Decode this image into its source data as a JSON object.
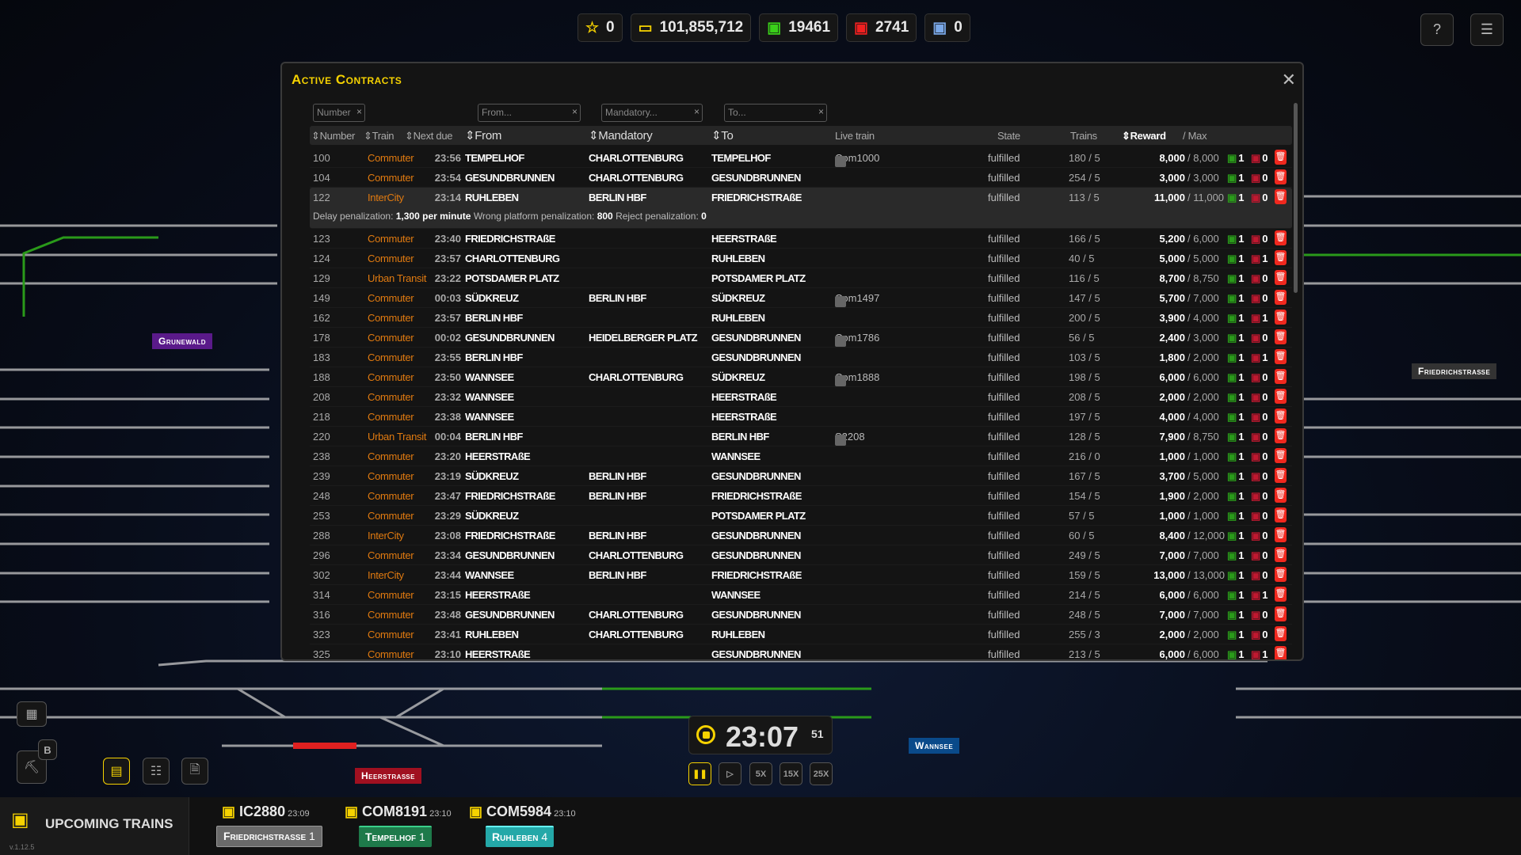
{
  "stats": {
    "stars": "0",
    "money": "101,855,712",
    "trains_ok": "19461",
    "trains_bad": "2741",
    "trains_other": "0"
  },
  "colors": {
    "accent": "#f6d200",
    "train_type": "#e07a10",
    "ok": "#2a9a1a",
    "bad": "#c01830",
    "delete": "#f0281e"
  },
  "map_labels": {
    "grunewald": "Grunewald",
    "friedrichstrasse": "Friedrichstraße",
    "heerstrasse": "Heerstraße",
    "wannsee": "Wannsee"
  },
  "modal": {
    "title": "Active Contracts",
    "filters": {
      "number": "Number",
      "from": "From...",
      "mandatory": "Mandatory...",
      "to": "To..."
    },
    "columns": {
      "number": "Number",
      "train": "Train",
      "next_due": "Next due",
      "from": "From",
      "mandatory": "Mandatory",
      "to": "To",
      "live_train": "Live train",
      "state": "State",
      "trains": "Trains",
      "reward": "Reward",
      "max": "/ Max"
    },
    "detail": {
      "delay_label": "Delay penalization:",
      "delay_value": "1,300 per minute",
      "wrong_label": "Wrong platform penalization:",
      "wrong_value": "800",
      "reject_label": "Reject penalization:",
      "reject_value": "0"
    },
    "rows": [
      {
        "num": "100",
        "train": "Commuter",
        "due": "23:56",
        "from": "TEMPELHOF",
        "mand": "CHARLOTTENBURG",
        "to": "TEMPELHOF",
        "live": "Com1000",
        "state": "fulfilled",
        "trains": "180 / 5",
        "reward": "8,000",
        "max": "8,000",
        "g": "1",
        "r": "0"
      },
      {
        "num": "104",
        "train": "Commuter",
        "due": "23:54",
        "from": "GESUNDBRUNNEN",
        "mand": "CHARLOTTENBURG",
        "to": "GESUNDBRUNNEN",
        "live": "",
        "state": "fulfilled",
        "trains": "254 / 5",
        "reward": "3,000",
        "max": "3,000",
        "g": "1",
        "r": "0"
      },
      {
        "num": "122",
        "train": "InterCity",
        "due": "23:14",
        "from": "RUHLEBEN",
        "mand": "BERLIN HBF",
        "to": "FRIEDRICHSTRAßE",
        "live": "",
        "state": "fulfilled",
        "trains": "113 / 5",
        "reward": "11,000",
        "max": "11,000",
        "g": "1",
        "r": "0",
        "expanded": true
      },
      {
        "num": "123",
        "train": "Commuter",
        "due": "23:40",
        "from": "FRIEDRICHSTRAßE",
        "mand": "",
        "to": "HEERSTRAßE",
        "live": "",
        "state": "fulfilled",
        "trains": "166 / 5",
        "reward": "5,200",
        "max": "6,000",
        "g": "1",
        "r": "0"
      },
      {
        "num": "124",
        "train": "Commuter",
        "due": "23:57",
        "from": "CHARLOTTENBURG",
        "mand": "",
        "to": "RUHLEBEN",
        "live": "",
        "state": "fulfilled",
        "trains": "40 / 5",
        "reward": "5,000",
        "max": "5,000",
        "g": "1",
        "r": "1"
      },
      {
        "num": "129",
        "train": "Urban Transit",
        "due": "23:22",
        "from": "POTSDAMER PLATZ",
        "mand": "",
        "to": "POTSDAMER PLATZ",
        "live": "",
        "state": "fulfilled",
        "trains": "116 / 5",
        "reward": "8,700",
        "max": "8,750",
        "g": "1",
        "r": "0"
      },
      {
        "num": "149",
        "train": "Commuter",
        "due": "00:03",
        "from": "SÜDKREUZ",
        "mand": "BERLIN HBF",
        "to": "SÜDKREUZ",
        "live": "Com1497",
        "state": "fulfilled",
        "trains": "147 / 5",
        "reward": "5,700",
        "max": "7,000",
        "g": "1",
        "r": "0"
      },
      {
        "num": "162",
        "train": "Commuter",
        "due": "23:57",
        "from": "BERLIN HBF",
        "mand": "",
        "to": "RUHLEBEN",
        "live": "",
        "state": "fulfilled",
        "trains": "200 / 5",
        "reward": "3,900",
        "max": "4,000",
        "g": "1",
        "r": "1"
      },
      {
        "num": "178",
        "train": "Commuter",
        "due": "00:02",
        "from": "GESUNDBRUNNEN",
        "mand": "HEIDELBERGER PLATZ",
        "to": "GESUNDBRUNNEN",
        "live": "Com1786",
        "state": "fulfilled",
        "trains": "56 / 5",
        "reward": "2,400",
        "max": "3,000",
        "g": "1",
        "r": "0"
      },
      {
        "num": "183",
        "train": "Commuter",
        "due": "23:55",
        "from": "BERLIN HBF",
        "mand": "",
        "to": "GESUNDBRUNNEN",
        "live": "",
        "state": "fulfilled",
        "trains": "103 / 5",
        "reward": "1,800",
        "max": "2,000",
        "g": "1",
        "r": "1"
      },
      {
        "num": "188",
        "train": "Commuter",
        "due": "23:50",
        "from": "WANNSEE",
        "mand": "CHARLOTTENBURG",
        "to": "SÜDKREUZ",
        "live": "Com1888",
        "state": "fulfilled",
        "trains": "198 / 5",
        "reward": "6,000",
        "max": "6,000",
        "g": "1",
        "r": "0"
      },
      {
        "num": "208",
        "train": "Commuter",
        "due": "23:32",
        "from": "WANNSEE",
        "mand": "",
        "to": "HEERSTRAßE",
        "live": "",
        "state": "fulfilled",
        "trains": "208 / 5",
        "reward": "2,000",
        "max": "2,000",
        "g": "1",
        "r": "0"
      },
      {
        "num": "218",
        "train": "Commuter",
        "due": "23:38",
        "from": "WANNSEE",
        "mand": "",
        "to": "HEERSTRAßE",
        "live": "",
        "state": "fulfilled",
        "trains": "197 / 5",
        "reward": "4,000",
        "max": "4,000",
        "g": "1",
        "r": "0"
      },
      {
        "num": "220",
        "train": "Urban Transit",
        "due": "00:04",
        "from": "BERLIN HBF",
        "mand": "",
        "to": "BERLIN HBF",
        "live": "S2208",
        "state": "fulfilled",
        "trains": "128 / 5",
        "reward": "7,900",
        "max": "8,750",
        "g": "1",
        "r": "0"
      },
      {
        "num": "238",
        "train": "Commuter",
        "due": "23:20",
        "from": "HEERSTRAßE",
        "mand": "",
        "to": "WANNSEE",
        "live": "",
        "state": "fulfilled",
        "trains": "216 / 0",
        "reward": "1,000",
        "max": "1,000",
        "g": "1",
        "r": "0"
      },
      {
        "num": "239",
        "train": "Commuter",
        "due": "23:19",
        "from": "SÜDKREUZ",
        "mand": "BERLIN HBF",
        "to": "GESUNDBRUNNEN",
        "live": "",
        "state": "fulfilled",
        "trains": "167 / 5",
        "reward": "3,700",
        "max": "5,000",
        "g": "1",
        "r": "0"
      },
      {
        "num": "248",
        "train": "Commuter",
        "due": "23:47",
        "from": "FRIEDRICHSTRAßE",
        "mand": "BERLIN HBF",
        "to": "FRIEDRICHSTRAßE",
        "live": "",
        "state": "fulfilled",
        "trains": "154 / 5",
        "reward": "1,900",
        "max": "2,000",
        "g": "1",
        "r": "0"
      },
      {
        "num": "253",
        "train": "Commuter",
        "due": "23:29",
        "from": "SÜDKREUZ",
        "mand": "",
        "to": "POTSDAMER PLATZ",
        "live": "",
        "state": "fulfilled",
        "trains": "57 / 5",
        "reward": "1,000",
        "max": "1,000",
        "g": "1",
        "r": "0"
      },
      {
        "num": "288",
        "train": "InterCity",
        "due": "23:08",
        "from": "FRIEDRICHSTRAßE",
        "mand": "BERLIN HBF",
        "to": "GESUNDBRUNNEN",
        "live": "",
        "state": "fulfilled",
        "trains": "60 / 5",
        "reward": "8,400",
        "max": "12,000",
        "g": "1",
        "r": "0"
      },
      {
        "num": "296",
        "train": "Commuter",
        "due": "23:34",
        "from": "GESUNDBRUNNEN",
        "mand": "CHARLOTTENBURG",
        "to": "GESUNDBRUNNEN",
        "live": "",
        "state": "fulfilled",
        "trains": "249 / 5",
        "reward": "7,000",
        "max": "7,000",
        "g": "1",
        "r": "0"
      },
      {
        "num": "302",
        "train": "InterCity",
        "due": "23:44",
        "from": "WANNSEE",
        "mand": "BERLIN HBF",
        "to": "FRIEDRICHSTRAßE",
        "live": "",
        "state": "fulfilled",
        "trains": "159 / 5",
        "reward": "13,000",
        "max": "13,000",
        "g": "1",
        "r": "0"
      },
      {
        "num": "314",
        "train": "Commuter",
        "due": "23:15",
        "from": "HEERSTRAßE",
        "mand": "",
        "to": "WANNSEE",
        "live": "",
        "state": "fulfilled",
        "trains": "214 / 5",
        "reward": "6,000",
        "max": "6,000",
        "g": "1",
        "r": "1"
      },
      {
        "num": "316",
        "train": "Commuter",
        "due": "23:48",
        "from": "GESUNDBRUNNEN",
        "mand": "CHARLOTTENBURG",
        "to": "GESUNDBRUNNEN",
        "live": "",
        "state": "fulfilled",
        "trains": "248 / 5",
        "reward": "7,000",
        "max": "7,000",
        "g": "1",
        "r": "0"
      },
      {
        "num": "323",
        "train": "Commuter",
        "due": "23:41",
        "from": "RUHLEBEN",
        "mand": "CHARLOTTENBURG",
        "to": "RUHLEBEN",
        "live": "",
        "state": "fulfilled",
        "trains": "255 / 3",
        "reward": "2,000",
        "max": "2,000",
        "g": "1",
        "r": "0"
      },
      {
        "num": "325",
        "train": "Commuter",
        "due": "23:10",
        "from": "HEERSTRAßE",
        "mand": "",
        "to": "GESUNDBRUNNEN",
        "live": "",
        "state": "fulfilled",
        "trains": "213 / 5",
        "reward": "6,000",
        "max": "6,000",
        "g": "1",
        "r": "1"
      }
    ]
  },
  "clock": {
    "time": "23:07",
    "seconds": "51",
    "speeds": [
      "5X",
      "15X",
      "25X"
    ]
  },
  "tools": {
    "build_key": "B"
  },
  "upcoming": {
    "title": "UPCOMING TRAINS",
    "version": "v.1.12.5",
    "trains": [
      {
        "id": "IC2880",
        "time": "23:09",
        "station": "Friedrichstraße",
        "platform": "1",
        "color": "#6a6a6a"
      },
      {
        "id": "COM8191",
        "time": "23:10",
        "station": "Tempelhof",
        "platform": "1",
        "color": "#1e7a4a"
      },
      {
        "id": "COM5984",
        "time": "23:10",
        "station": "Ruhleben",
        "platform": "4",
        "color": "#24a8a8"
      }
    ]
  }
}
